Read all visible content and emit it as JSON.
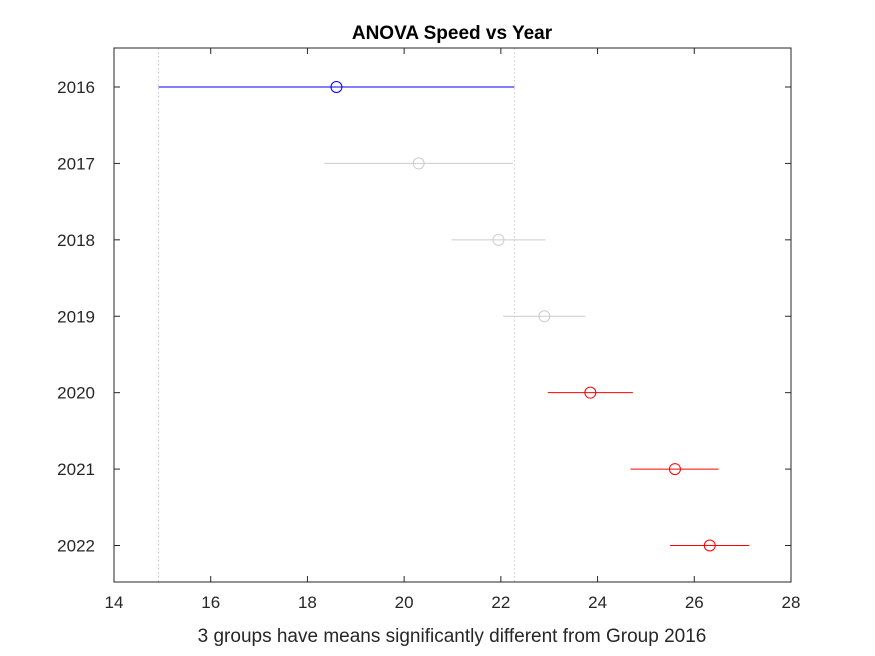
{
  "chart_data": {
    "type": "interval",
    "title": "ANOVA Speed vs Year",
    "xlabel": "3 groups have means significantly different from Group 2016",
    "ylabel": "",
    "xlim": [
      14,
      28
    ],
    "xticks": [
      14,
      16,
      18,
      20,
      22,
      24,
      26,
      28
    ],
    "grid": false,
    "comparison_bounds": [
      14.92,
      22.28
    ],
    "groups": [
      {
        "label": "2016",
        "mean": 18.6,
        "lower": 14.92,
        "upper": 22.28,
        "status": "selected"
      },
      {
        "label": "2017",
        "mean": 20.3,
        "lower": 18.35,
        "upper": 22.25,
        "status": "not-significant"
      },
      {
        "label": "2018",
        "mean": 21.95,
        "lower": 20.98,
        "upper": 22.92,
        "status": "not-significant"
      },
      {
        "label": "2019",
        "mean": 22.9,
        "lower": 22.05,
        "upper": 23.75,
        "status": "not-significant"
      },
      {
        "label": "2020",
        "mean": 23.85,
        "lower": 22.97,
        "upper": 24.73,
        "status": "significant"
      },
      {
        "label": "2021",
        "mean": 25.6,
        "lower": 24.68,
        "upper": 26.5,
        "status": "significant"
      },
      {
        "label": "2022",
        "mean": 26.32,
        "lower": 25.5,
        "upper": 27.14,
        "status": "significant"
      }
    ],
    "colors": {
      "selected": "#0000ff",
      "significant": "#ff0000",
      "not-significant": "#cccccc",
      "bound_line": "#cccccc",
      "axis": "#262626"
    }
  }
}
